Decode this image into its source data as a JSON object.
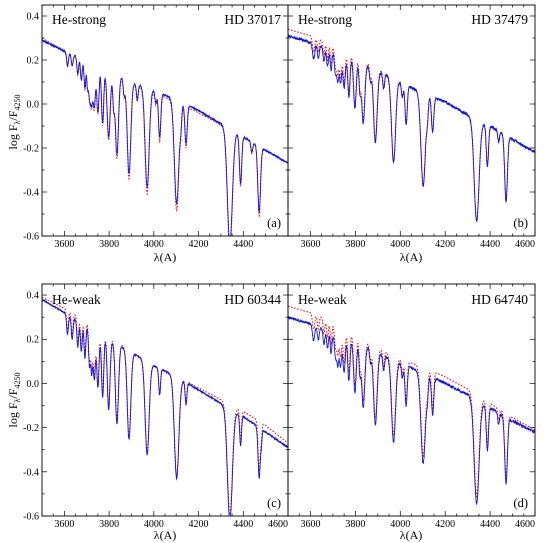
{
  "colors": {
    "observed": "#1414d2",
    "model": "#dc1e1e",
    "frame": "#000000"
  },
  "shared": {
    "ylabel_base": "log F",
    "ylabel_sub1": "λ",
    "ylabel_mid": "/F",
    "ylabel_sub2": "4250",
    "xlabel": "λ(A)"
  },
  "chart_data": [
    {
      "type": "line",
      "group": "He-strong",
      "star": "HD 37017",
      "tag": "(a)",
      "xlim": [
        3500,
        4600
      ],
      "ylim": [
        -0.6,
        0.45
      ],
      "xticks": [
        3600,
        3800,
        4000,
        4200,
        4400
      ],
      "yticks": [
        0.4,
        0.2,
        0.0,
        -0.2,
        -0.4,
        -0.6
      ],
      "continuum": [
        [
          3500,
          0.29
        ],
        [
          3600,
          0.24
        ],
        [
          3700,
          0.2
        ],
        [
          3800,
          0.15
        ],
        [
          3900,
          0.1
        ],
        [
          4000,
          0.06
        ],
        [
          4100,
          0.02
        ],
        [
          4200,
          -0.03
        ],
        [
          4300,
          -0.09
        ],
        [
          4400,
          -0.15
        ],
        [
          4500,
          -0.21
        ],
        [
          4600,
          -0.27
        ]
      ],
      "lines": [
        [
          3614,
          0.06,
          4
        ],
        [
          3635,
          0.05,
          4
        ],
        [
          3660,
          0.08,
          4
        ],
        [
          3676,
          0.1,
          4
        ],
        [
          3692,
          0.13,
          4
        ],
        [
          3703,
          0.1,
          3
        ],
        [
          3712,
          0.15,
          5
        ],
        [
          3722,
          0.17,
          5
        ],
        [
          3734,
          0.19,
          5
        ],
        [
          3750,
          0.21,
          5
        ],
        [
          3771,
          0.25,
          5
        ],
        [
          3798,
          0.3,
          7
        ],
        [
          3820,
          0.13,
          4
        ],
        [
          3835,
          0.36,
          7
        ],
        [
          3867,
          0.07,
          4
        ],
        [
          3889,
          0.42,
          8
        ],
        [
          3926,
          0.07,
          4
        ],
        [
          3970,
          0.45,
          9
        ],
        [
          4009,
          0.05,
          4
        ],
        [
          4026,
          0.2,
          5
        ],
        [
          4102,
          0.47,
          10
        ],
        [
          4121,
          0.07,
          4
        ],
        [
          4144,
          0.18,
          5
        ],
        [
          4340,
          0.52,
          11
        ],
        [
          4388,
          0.22,
          5
        ],
        [
          4438,
          0.05,
          4
        ],
        [
          4471,
          0.3,
          6
        ]
      ],
      "model_shift": [
        [
          3500,
          0.01
        ],
        [
          3600,
          0.0
        ],
        [
          3700,
          0.0
        ],
        [
          3800,
          0.0
        ],
        [
          4000,
          -0.01
        ],
        [
          4200,
          -0.01
        ],
        [
          4400,
          0.0
        ],
        [
          4600,
          0.0
        ]
      ],
      "model_depth_scale": 1.05,
      "noise": 0.008
    },
    {
      "type": "line",
      "group": "He-strong",
      "star": "HD 37479",
      "tag": "(b)",
      "xlim": [
        3500,
        4600
      ],
      "ylim": [
        -0.6,
        0.45
      ],
      "xticks": [
        3600,
        3800,
        4000,
        4200,
        4400,
        4600
      ],
      "yticks": [],
      "continuum": [
        [
          3500,
          0.31
        ],
        [
          3600,
          0.28
        ],
        [
          3700,
          0.24
        ],
        [
          3800,
          0.2
        ],
        [
          3900,
          0.15
        ],
        [
          4000,
          0.1
        ],
        [
          4100,
          0.05
        ],
        [
          4200,
          0.01
        ],
        [
          4300,
          -0.05
        ],
        [
          4400,
          -0.1
        ],
        [
          4500,
          -0.16
        ],
        [
          4600,
          -0.22
        ]
      ],
      "lines": [
        [
          3614,
          0.07,
          5
        ],
        [
          3635,
          0.06,
          4
        ],
        [
          3660,
          0.06,
          4
        ],
        [
          3676,
          0.08,
          4
        ],
        [
          3692,
          0.09,
          4
        ],
        [
          3712,
          0.1,
          5
        ],
        [
          3722,
          0.11,
          4
        ],
        [
          3734,
          0.13,
          5
        ],
        [
          3750,
          0.15,
          5
        ],
        [
          3771,
          0.18,
          5
        ],
        [
          3798,
          0.22,
          6
        ],
        [
          3820,
          0.12,
          4
        ],
        [
          3835,
          0.27,
          7
        ],
        [
          3867,
          0.06,
          4
        ],
        [
          3889,
          0.33,
          8
        ],
        [
          3926,
          0.07,
          4
        ],
        [
          3970,
          0.38,
          9
        ],
        [
          4009,
          0.06,
          4
        ],
        [
          4026,
          0.18,
          5
        ],
        [
          4102,
          0.42,
          10
        ],
        [
          4121,
          0.07,
          4
        ],
        [
          4144,
          0.16,
          5
        ],
        [
          4340,
          0.46,
          11
        ],
        [
          4388,
          0.19,
          5
        ],
        [
          4438,
          0.05,
          4
        ],
        [
          4471,
          0.3,
          6
        ]
      ],
      "model_shift": [
        [
          3500,
          0.03
        ],
        [
          3700,
          0.03
        ],
        [
          3800,
          0.02
        ],
        [
          3900,
          0.01
        ],
        [
          4000,
          0.0
        ],
        [
          4200,
          0.0
        ],
        [
          4400,
          0.0
        ],
        [
          4600,
          0.0
        ]
      ],
      "model_depth_scale": 1.0,
      "noise": 0.012
    },
    {
      "type": "line",
      "group": "He-weak",
      "star": "HD 60344",
      "tag": "(c)",
      "xlim": [
        3500,
        4600
      ],
      "ylim": [
        -0.6,
        0.45
      ],
      "xticks": [
        3600,
        3800,
        4000,
        4200,
        4400,
        4600
      ],
      "yticks": [
        0.4,
        0.2,
        0.0,
        -0.2,
        -0.4,
        -0.6
      ],
      "continuum": [
        [
          3500,
          0.38
        ],
        [
          3600,
          0.32
        ],
        [
          3700,
          0.26
        ],
        [
          3800,
          0.2
        ],
        [
          3900,
          0.14
        ],
        [
          4000,
          0.08
        ],
        [
          4100,
          0.03
        ],
        [
          4200,
          -0.03
        ],
        [
          4300,
          -0.09
        ],
        [
          4400,
          -0.15
        ],
        [
          4500,
          -0.22
        ],
        [
          4600,
          -0.29
        ]
      ],
      "lines": [
        [
          3614,
          0.09,
          4
        ],
        [
          3635,
          0.1,
          4
        ],
        [
          3660,
          0.12,
          4
        ],
        [
          3676,
          0.13,
          4
        ],
        [
          3692,
          0.15,
          4
        ],
        [
          3712,
          0.17,
          4
        ],
        [
          3722,
          0.19,
          4
        ],
        [
          3734,
          0.22,
          5
        ],
        [
          3750,
          0.25,
          5
        ],
        [
          3771,
          0.28,
          5
        ],
        [
          3798,
          0.32,
          6
        ],
        [
          3835,
          0.36,
          7
        ],
        [
          3889,
          0.4,
          8
        ],
        [
          3970,
          0.42,
          9
        ],
        [
          4026,
          0.12,
          4
        ],
        [
          4102,
          0.46,
          10
        ],
        [
          4144,
          0.1,
          4
        ],
        [
          4340,
          0.51,
          11
        ],
        [
          4388,
          0.14,
          4
        ],
        [
          4471,
          0.23,
          5
        ],
        [
          4481,
          0.06,
          3
        ]
      ],
      "model_shift": [
        [
          3500,
          0.01
        ],
        [
          3600,
          0.02
        ],
        [
          3700,
          0.02
        ],
        [
          3800,
          0.01
        ],
        [
          4000,
          0.0
        ],
        [
          4200,
          0.01
        ],
        [
          4350,
          0.02
        ],
        [
          4500,
          0.03
        ],
        [
          4600,
          0.02
        ]
      ],
      "model_depth_scale": 0.98,
      "noise": 0.007
    },
    {
      "type": "line",
      "group": "He-weak",
      "star": "HD 64740",
      "tag": "(d)",
      "xlim": [
        3500,
        4600
      ],
      "ylim": [
        -0.6,
        0.45
      ],
      "xticks": [
        3600,
        3800,
        4000,
        4200,
        4400,
        4600
      ],
      "yticks": [],
      "continuum": [
        [
          3500,
          0.3
        ],
        [
          3600,
          0.27
        ],
        [
          3700,
          0.23
        ],
        [
          3800,
          0.19
        ],
        [
          3900,
          0.14
        ],
        [
          4000,
          0.09
        ],
        [
          4100,
          0.05
        ],
        [
          4200,
          0.0
        ],
        [
          4300,
          -0.05
        ],
        [
          4400,
          -0.11
        ],
        [
          4500,
          -0.17
        ],
        [
          4600,
          -0.22
        ]
      ],
      "lines": [
        [
          3614,
          0.07,
          5
        ],
        [
          3635,
          0.06,
          4
        ],
        [
          3660,
          0.07,
          4
        ],
        [
          3676,
          0.08,
          4
        ],
        [
          3692,
          0.1,
          4
        ],
        [
          3712,
          0.11,
          5
        ],
        [
          3722,
          0.12,
          4
        ],
        [
          3734,
          0.14,
          5
        ],
        [
          3750,
          0.16,
          5
        ],
        [
          3771,
          0.19,
          5
        ],
        [
          3798,
          0.23,
          6
        ],
        [
          3820,
          0.12,
          4
        ],
        [
          3835,
          0.28,
          7
        ],
        [
          3867,
          0.06,
          4
        ],
        [
          3889,
          0.33,
          8
        ],
        [
          3926,
          0.07,
          4
        ],
        [
          3970,
          0.37,
          9
        ],
        [
          4009,
          0.06,
          4
        ],
        [
          4026,
          0.18,
          5
        ],
        [
          4102,
          0.41,
          10
        ],
        [
          4121,
          0.07,
          4
        ],
        [
          4144,
          0.17,
          5
        ],
        [
          4340,
          0.47,
          11
        ],
        [
          4388,
          0.2,
          5
        ],
        [
          4438,
          0.05,
          4
        ],
        [
          4471,
          0.3,
          6
        ]
      ],
      "model_shift": [
        [
          3500,
          0.05
        ],
        [
          3650,
          0.05
        ],
        [
          3750,
          0.04
        ],
        [
          3850,
          0.02
        ],
        [
          4000,
          0.02
        ],
        [
          4200,
          0.03
        ],
        [
          4400,
          0.02
        ],
        [
          4600,
          0.01
        ]
      ],
      "model_depth_scale": 0.98,
      "noise": 0.012
    }
  ]
}
